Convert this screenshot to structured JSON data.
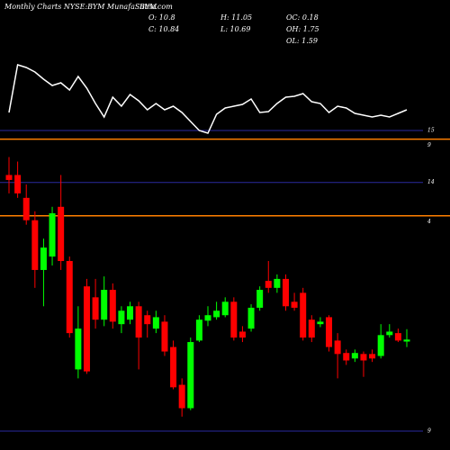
{
  "chart_data": {
    "type": "candlestick",
    "title": "Monthly Charts NYSE:BYM MunafaSutra.com",
    "ticker": "BYM",
    "stats": [
      "O: 10.8",
      "C: 10.84",
      "H: 11.05",
      "L: 10.69",
      "OC: 0.18",
      "OH: 1.75",
      "OL: 1.59"
    ],
    "up_color": "#00ff00",
    "down_color": "#ff0000",
    "open": [
      14.15,
      14.15,
      13.69,
      13.24,
      12.24,
      12.51,
      13.51,
      12.42,
      10.24,
      11.91,
      11.69,
      11.24,
      11.84,
      11.15,
      11.24,
      11.51,
      11.33,
      11.06,
      11.2,
      10.69,
      9.93,
      9.46,
      10.82,
      11.22,
      11.29,
      11.33,
      11.6,
      11.0,
      11.06,
      11.48,
      12.02,
      11.88,
      12.06,
      11.6,
      11.78,
      11.24,
      11.15,
      11.29,
      10.82,
      10.57,
      10.46,
      10.55,
      10.55,
      10.51,
      10.93,
      10.97,
      10.8
    ],
    "high": [
      14.51,
      14.42,
      13.96,
      13.42,
      12.87,
      13.51,
      14.15,
      12.51,
      11.51,
      12.06,
      12.06,
      12.11,
      11.97,
      11.51,
      11.6,
      11.6,
      11.42,
      11.42,
      11.33,
      10.82,
      10.06,
      10.88,
      11.33,
      11.51,
      11.6,
      11.69,
      11.69,
      11.11,
      11.55,
      11.91,
      12.42,
      12.15,
      12.15,
      11.78,
      11.88,
      11.33,
      11.29,
      11.33,
      10.97,
      10.64,
      10.64,
      10.6,
      10.64,
      11.15,
      11.15,
      11.06,
      11.05
    ],
    "low": [
      13.78,
      13.69,
      13.15,
      11.88,
      11.51,
      12.33,
      12.24,
      10.88,
      10.06,
      10.15,
      11.06,
      11.11,
      11.06,
      10.97,
      11.15,
      10.24,
      10.88,
      10.97,
      10.51,
      9.84,
      9.29,
      9.42,
      10.79,
      11.11,
      11.24,
      11.29,
      10.82,
      10.79,
      11.0,
      11.42,
      11.78,
      11.78,
      11.42,
      11.42,
      10.82,
      10.79,
      11.09,
      10.6,
      10.06,
      10.33,
      10.39,
      10.09,
      10.39,
      10.46,
      10.88,
      10.79,
      10.69
    ],
    "close": [
      14.05,
      13.78,
      13.24,
      12.24,
      12.69,
      13.38,
      12.42,
      10.97,
      11.06,
      10.2,
      11.24,
      11.84,
      11.2,
      11.42,
      11.51,
      10.88,
      11.15,
      11.29,
      10.6,
      9.88,
      9.46,
      10.79,
      11.24,
      11.33,
      11.42,
      11.6,
      10.88,
      10.88,
      11.48,
      11.84,
      11.88,
      12.06,
      11.51,
      11.48,
      10.88,
      10.88,
      11.2,
      10.69,
      10.55,
      10.42,
      10.57,
      10.42,
      10.46,
      10.93,
      11.0,
      10.82,
      10.84
    ],
    "ylim": [
      8.8,
      14.9
    ],
    "yticks": [
      14,
      9
    ],
    "levels": [
      {
        "value": 14.87,
        "label": "9"
      },
      {
        "value": 13.33,
        "label": "4"
      }
    ],
    "indicator": {
      "values": [
        35,
        88,
        85,
        80,
        72,
        65,
        68,
        60,
        75,
        62,
        45,
        30,
        52,
        42,
        55,
        48,
        38,
        45,
        38,
        42,
        35,
        25,
        15,
        12,
        33,
        40,
        42,
        44,
        50,
        35,
        36,
        45,
        52,
        53,
        56,
        47,
        45,
        35,
        42,
        40,
        34,
        32,
        30,
        32,
        30,
        34,
        38
      ],
      "ylim": [
        0,
        100
      ],
      "yticks": [
        15
      ]
    }
  }
}
